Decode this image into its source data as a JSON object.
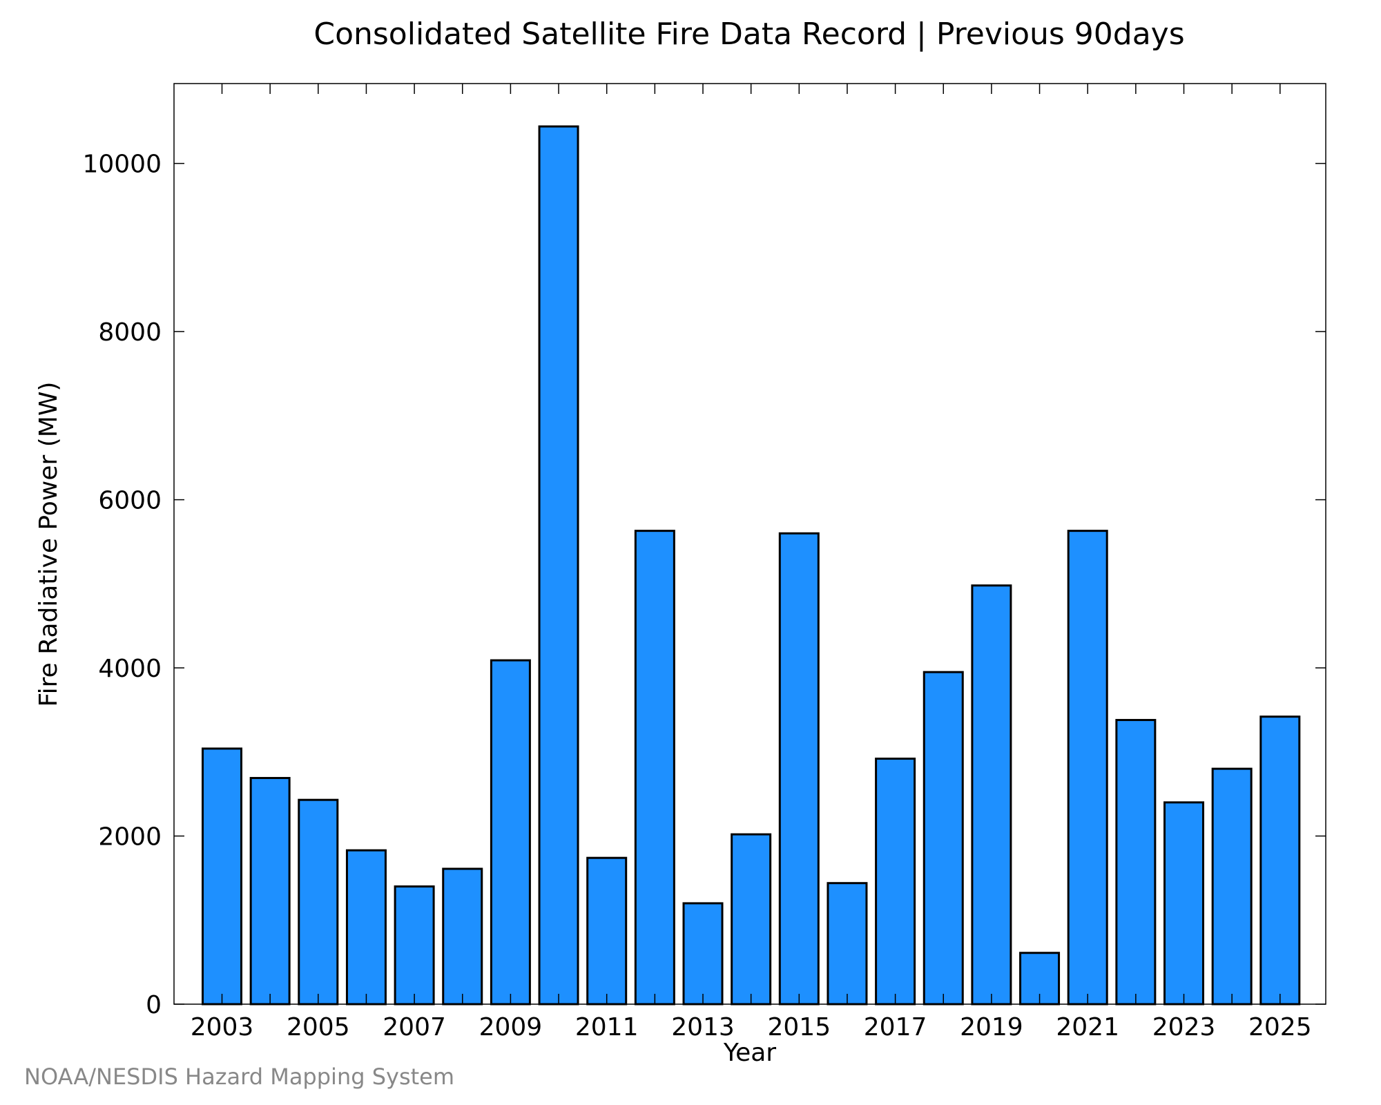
{
  "chart_data": {
    "type": "bar",
    "title": "Consolidated Satellite Fire Data Record | Previous 90days",
    "xlabel": "Year",
    "ylabel": "Fire Radiative Power (MW)",
    "categories": [
      "2003",
      "2004",
      "2005",
      "2006",
      "2007",
      "2008",
      "2009",
      "2010",
      "2011",
      "2012",
      "2013",
      "2014",
      "2015",
      "2016",
      "2017",
      "2018",
      "2019",
      "2020",
      "2021",
      "2022",
      "2023",
      "2024",
      "2025"
    ],
    "values": [
      3040,
      2690,
      2430,
      1830,
      1400,
      1610,
      4090,
      10440,
      1740,
      5630,
      1200,
      2020,
      5600,
      1440,
      2920,
      3950,
      4980,
      610,
      5630,
      3380,
      2400,
      2800,
      3420
    ],
    "x_tick_labels": [
      "2003",
      "2005",
      "2007",
      "2009",
      "2011",
      "2013",
      "2015",
      "2017",
      "2019",
      "2021",
      "2023",
      "2025"
    ],
    "y_ticks": [
      0,
      2000,
      4000,
      6000,
      8000,
      10000
    ],
    "ylim": [
      0,
      10950
    ],
    "grid": false,
    "bar_color": "#1e90ff",
    "bar_edge_color": "#000000"
  },
  "credit": "NOAA/NESDIS Hazard Mapping System"
}
